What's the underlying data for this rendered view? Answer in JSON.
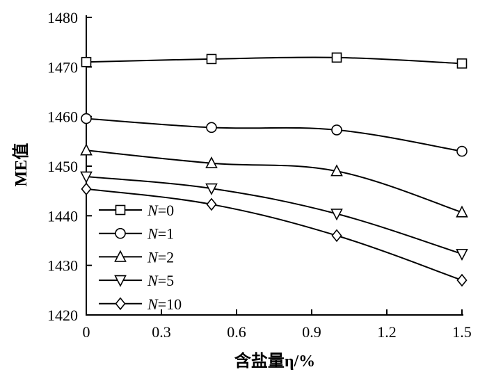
{
  "chart_data": {
    "type": "line",
    "title": "",
    "xlabel": "含盐量η/%",
    "ylabel": "ME值",
    "xlim": [
      0,
      1.5
    ],
    "ylim": [
      1420,
      1480
    ],
    "xticks": [
      "0",
      "0.3",
      "0.6",
      "0.9",
      "1.2",
      "1.5"
    ],
    "yticks": [
      "1420",
      "1430",
      "1440",
      "1450",
      "1460",
      "1470",
      "1480"
    ],
    "legend_position": "bottom-left",
    "grid": false,
    "x": [
      0,
      0.5,
      1.0,
      1.5
    ],
    "series": [
      {
        "name": "N=0",
        "marker": "square",
        "values": [
          1471.0,
          1471.6,
          1471.9,
          1470.7
        ]
      },
      {
        "name": "N=1",
        "marker": "circle",
        "values": [
          1459.6,
          1457.8,
          1457.3,
          1453.0
        ]
      },
      {
        "name": "N=2",
        "marker": "triangle-up",
        "values": [
          1453.2,
          1450.6,
          1449.0,
          1440.7
        ]
      },
      {
        "name": "N=5",
        "marker": "triangle-down",
        "values": [
          1447.9,
          1445.5,
          1440.4,
          1432.3
        ]
      },
      {
        "name": "N=10",
        "marker": "diamond",
        "values": [
          1445.4,
          1442.3,
          1436.0,
          1427.0
        ]
      }
    ]
  },
  "legend": [
    {
      "var": "N",
      "rest": "=0"
    },
    {
      "var": "N",
      "rest": "=1"
    },
    {
      "var": "N",
      "rest": "=2"
    },
    {
      "var": "N",
      "rest": "=5"
    },
    {
      "var": "N",
      "rest": "=10"
    }
  ]
}
